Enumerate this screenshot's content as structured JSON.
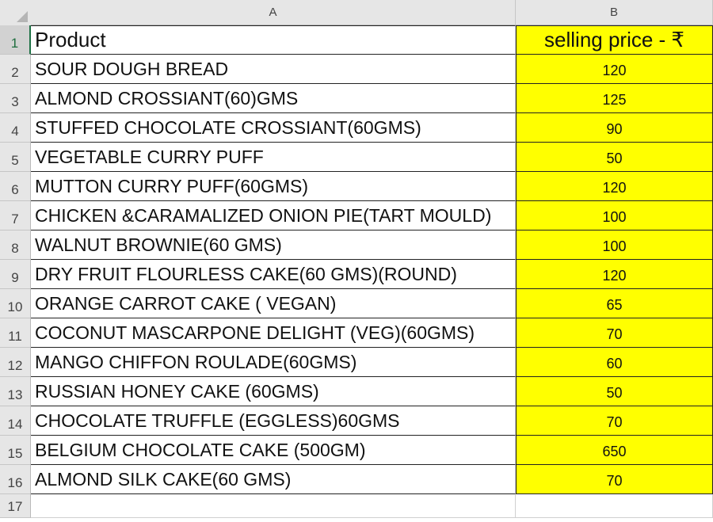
{
  "columns": [
    "A",
    "B"
  ],
  "header": {
    "row": "1",
    "product": "Product",
    "price": "selling price - ₹"
  },
  "rows": [
    {
      "row": "2",
      "product": "SOUR DOUGH BREAD",
      "price": "120"
    },
    {
      "row": "3",
      "product": "ALMOND CROSSIANT(60)GMS",
      "price": "125"
    },
    {
      "row": "4",
      "product": "STUFFED CHOCOLATE CROSSIANT(60GMS)",
      "price": "90"
    },
    {
      "row": "5",
      "product": "VEGETABLE  CURRY PUFF",
      "price": "50"
    },
    {
      "row": "6",
      "product": "MUTTON CURRY PUFF(60GMS)",
      "price": "120"
    },
    {
      "row": "7",
      "product": "CHICKEN &CARAMALIZED ONION PIE(TART MOULD)",
      "price": "100"
    },
    {
      "row": "8",
      "product": "WALNUT BROWNIE(60 GMS)",
      "price": "100"
    },
    {
      "row": "9",
      "product": "DRY FRUIT FLOURLESS CAKE(60 GMS)(ROUND)",
      "price": "120"
    },
    {
      "row": "10",
      "product": "ORANGE CARROT CAKE ( VEGAN)",
      "price": "65"
    },
    {
      "row": "11",
      "product": "COCONUT MASCARPONE DELIGHT (VEG)(60GMS)",
      "price": "70"
    },
    {
      "row": "12",
      "product": "MANGO CHIFFON ROULADE(60GMS)",
      "price": "60"
    },
    {
      "row": "13",
      "product": "RUSSIAN HONEY CAKE (60GMS)",
      "price": "50"
    },
    {
      "row": "14",
      "product": "CHOCOLATE TRUFFLE (EGGLESS)60GMS",
      "price": "70"
    },
    {
      "row": "15",
      "product": "BELGIUM CHOCOLATE CAKE (500GM)",
      "price": "650"
    },
    {
      "row": "16",
      "product": "ALMOND SILK CAKE(60 GMS)",
      "price": "70"
    }
  ],
  "empty_row": "17",
  "colors": {
    "highlight": "#ffff00",
    "header_bg": "#e6e6e6",
    "selected_row_text": "#1e6e3e"
  }
}
